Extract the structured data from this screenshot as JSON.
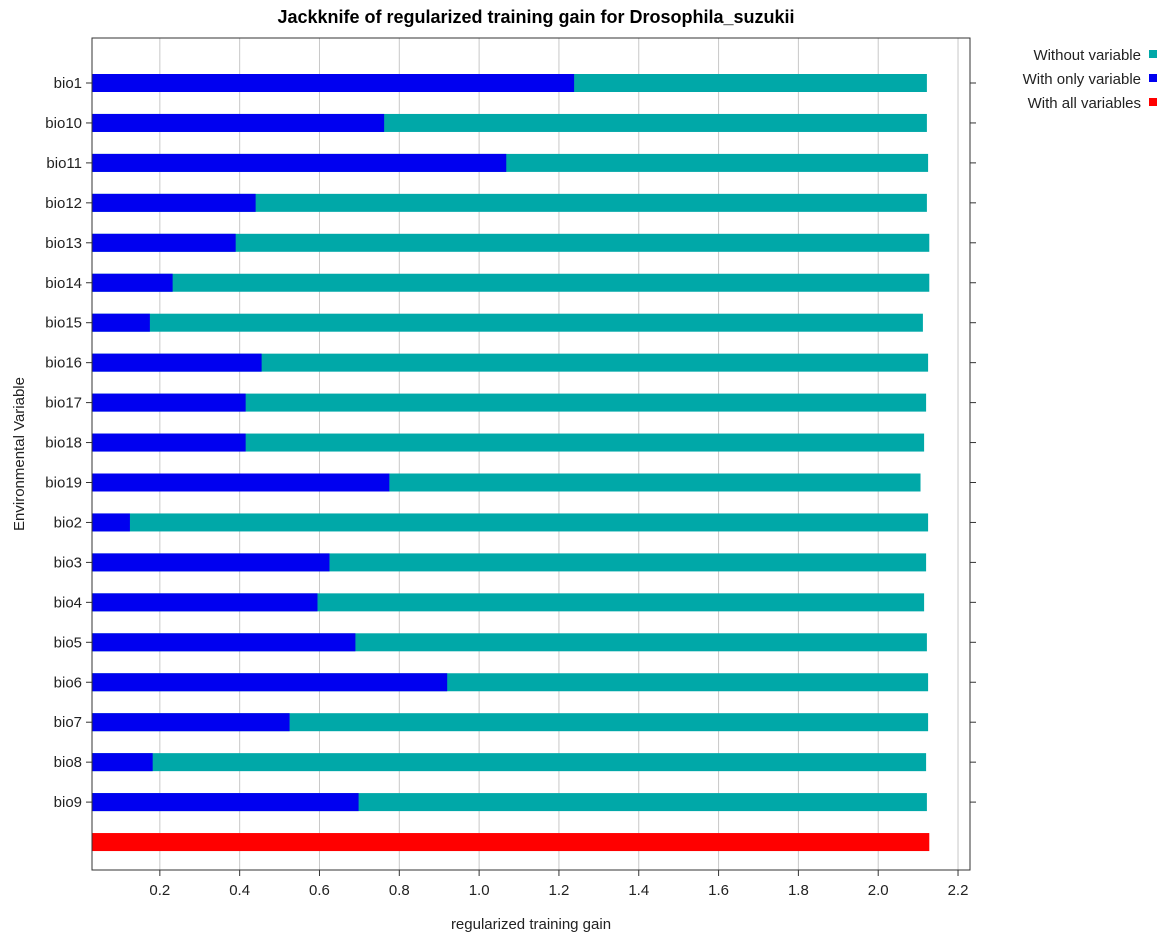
{
  "chart_data": {
    "type": "bar",
    "orientation": "horizontal",
    "title": "Jackknife of regularized training gain for Drosophila_suzukii",
    "xlabel": "regularized training gain",
    "ylabel": "Environmental Variable",
    "xlim": [
      0.03,
      2.23
    ],
    "xticks": [
      0.2,
      0.4,
      0.6,
      0.8,
      1.0,
      1.2,
      1.4,
      1.6,
      1.8,
      2.0,
      2.2
    ],
    "xtick_labels": [
      "0.2",
      "0.4",
      "0.6",
      "0.8",
      "1.0",
      "1.2",
      "1.4",
      "1.6",
      "1.8",
      "2.0",
      "2.2"
    ],
    "grid": true,
    "legend_position": "top-right",
    "categories": [
      "bio1",
      "bio10",
      "bio11",
      "bio12",
      "bio13",
      "bio14",
      "bio15",
      "bio16",
      "bio17",
      "bio18",
      "bio19",
      "bio2",
      "bio3",
      "bio4",
      "bio5",
      "bio6",
      "bio7",
      "bio8",
      "bio9"
    ],
    "series": [
      {
        "name": "Without variable",
        "color": "#00a8a8",
        "values": [
          2.122,
          2.122,
          2.125,
          2.122,
          2.128,
          2.128,
          2.112,
          2.125,
          2.12,
          2.115,
          2.106,
          2.125,
          2.12,
          2.115,
          2.122,
          2.125,
          2.125,
          2.12,
          2.122
        ]
      },
      {
        "name": "With only variable",
        "color": "#0000f0",
        "values": [
          1.238,
          0.762,
          1.068,
          0.44,
          0.39,
          0.232,
          0.175,
          0.455,
          0.415,
          0.415,
          0.775,
          0.125,
          0.625,
          0.595,
          0.69,
          0.92,
          0.525,
          0.182,
          0.698
        ]
      }
    ],
    "all_variables": {
      "name": "With all variables",
      "color": "#ff0000",
      "value": 2.128
    }
  }
}
